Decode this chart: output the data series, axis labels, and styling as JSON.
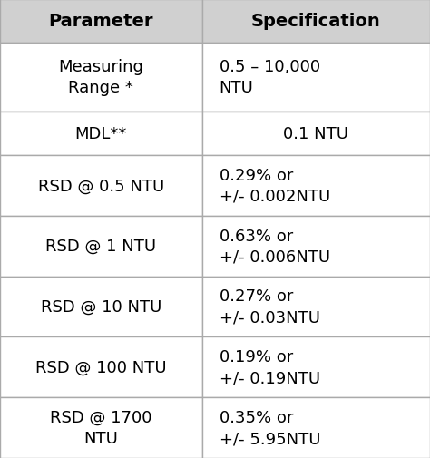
{
  "header": [
    "Parameter",
    "Specification"
  ],
  "rows": [
    [
      "Measuring\nRange *",
      "0.5 – 10,000\nNTU"
    ],
    [
      "MDL**",
      "0.1 NTU"
    ],
    [
      "RSD @ 0.5 NTU",
      "0.29% or\n+/- 0.002NTU"
    ],
    [
      "RSD @ 1 NTU",
      "0.63% or\n+/- 0.006NTU"
    ],
    [
      "RSD @ 10 NTU",
      "0.27% or\n+/- 0.03NTU"
    ],
    [
      "RSD @ 100 NTU",
      "0.19% or\n+/- 0.19NTU"
    ],
    [
      "RSD @ 1700\nNTU",
      "0.35% or\n+/- 5.95NTU"
    ]
  ],
  "header_bg": "#d0d0d0",
  "row_bg": "#ffffff",
  "border_color": "#aaaaaa",
  "header_fontsize": 14,
  "cell_fontsize": 13,
  "col_split": 0.47,
  "figsize": [
    4.74,
    5.06
  ],
  "dpi": 100
}
